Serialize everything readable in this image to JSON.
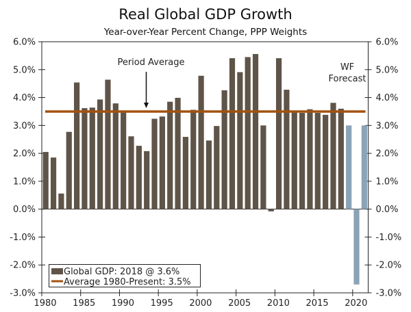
{
  "chart_data": {
    "type": "bar",
    "title": "Real Global GDP Growth",
    "subtitle": "Year-over-Year Percent Change, PPP Weights",
    "xlabel": "",
    "ylabel": "",
    "ylim": [
      -3.0,
      6.0
    ],
    "yticks": [
      6.0,
      5.0,
      4.0,
      3.0,
      2.0,
      1.0,
      0.0,
      -1.0,
      -2.0,
      -3.0
    ],
    "ytick_labels": [
      "6.0%",
      "5.0%",
      "4.0%",
      "3.0%",
      "2.0%",
      "1.0%",
      "0.0%",
      "-1.0%",
      "-2.0%",
      "-3.0%"
    ],
    "xtick_labels": [
      "1980",
      "1985",
      "1990",
      "1995",
      "2000",
      "2005",
      "2010",
      "2015",
      "2020"
    ],
    "grid": false,
    "dual_y_axis": true,
    "colors": {
      "actual": "#5f5448",
      "forecast": "#8aa3b6",
      "average": "#a3520f",
      "axis": "#222222"
    },
    "series": [
      {
        "name": "Global GDP: 2018 @ 3.6%",
        "type": "bar",
        "x": [
          1980,
          1981,
          1982,
          1983,
          1984,
          1985,
          1986,
          1987,
          1988,
          1989,
          1990,
          1991,
          1992,
          1993,
          1994,
          1995,
          1996,
          1997,
          1998,
          1999,
          2000,
          2001,
          2002,
          2003,
          2004,
          2005,
          2006,
          2007,
          2008,
          2009,
          2010,
          2011,
          2012,
          2013,
          2014,
          2015,
          2016,
          2017,
          2018
        ],
        "values": [
          2.05,
          1.85,
          0.56,
          2.77,
          4.54,
          3.62,
          3.64,
          3.93,
          4.64,
          3.79,
          3.46,
          2.61,
          2.27,
          2.08,
          3.24,
          3.32,
          3.85,
          3.99,
          2.59,
          3.56,
          4.78,
          2.46,
          2.98,
          4.26,
          5.41,
          4.91,
          5.45,
          5.56,
          3.0,
          -0.08,
          5.41,
          4.28,
          3.46,
          3.45,
          3.58,
          3.45,
          3.38,
          3.81,
          3.6
        ]
      },
      {
        "name": "WF Forecast",
        "type": "bar",
        "x": [
          2019,
          2020,
          2021
        ],
        "values": [
          3.0,
          -2.7,
          3.0
        ]
      },
      {
        "name": "Average 1980-Present: 3.5%",
        "type": "hline",
        "value": 3.5
      }
    ],
    "legend": {
      "position": "bottom-left",
      "entries": [
        "Global GDP: 2018 @ 3.6%",
        "Average 1980-Present: 3.5%"
      ]
    },
    "annotations": [
      {
        "text": "Period Average",
        "arrow": true,
        "points_to_year": 1993
      },
      {
        "text_lines": [
          "WF",
          "Forecast"
        ],
        "near_year": 2019
      }
    ]
  }
}
